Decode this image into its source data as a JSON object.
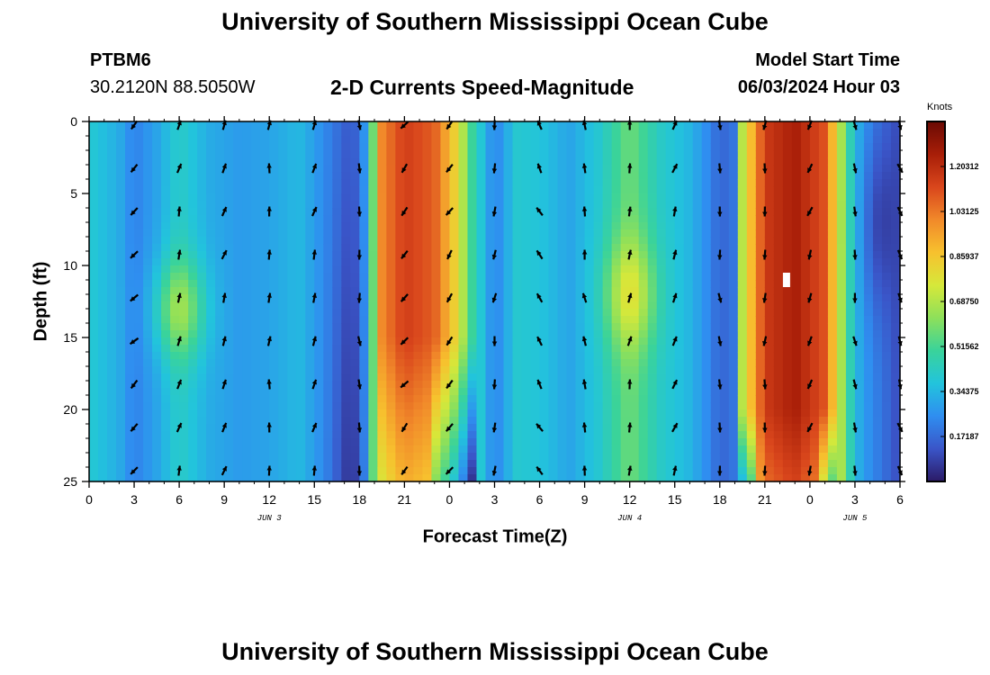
{
  "header": {
    "title": "University of Southern Mississippi Ocean Cube",
    "station": "PTBM6",
    "coords": "30.2120N  88.5050W",
    "subtitle": "2-D Currents Speed-Magnitude",
    "model_start_label": "Model Start Time",
    "model_start_value": "06/03/2024 Hour 03"
  },
  "footer": {
    "title": "University of Southern Mississippi Ocean Cube"
  },
  "colorbar": {
    "units": "Knots",
    "tick_values": [
      1.20312,
      1.03125,
      0.85937,
      0.6875,
      0.51562,
      0.34375,
      0.17187
    ],
    "tick_labels": [
      "1.20312",
      "1.03125",
      "0.85937",
      "0.68750",
      "0.51562",
      "0.34375",
      "0.17187"
    ],
    "range": [
      0,
      1.375
    ],
    "palette": [
      "#2b1a66",
      "#3a55c8",
      "#2f8ef0",
      "#22c4dc",
      "#3ad39a",
      "#8ee05a",
      "#d6e83a",
      "#f7c12e",
      "#f1892a",
      "#d9461c",
      "#a81e08",
      "#6a0a04"
    ]
  },
  "chart_data": {
    "type": "heatmap",
    "title": "2-D Currents Speed-Magnitude",
    "xlabel": "Forecast Time(Z)",
    "ylabel": "Depth (ft)",
    "x_unit": "hours since 06/03/2024 00Z",
    "xlim": [
      0,
      54
    ],
    "ylim": [
      25,
      0
    ],
    "x_ticks": [
      0,
      3,
      6,
      9,
      12,
      15,
      18,
      21,
      24,
      27,
      30,
      33,
      36,
      39,
      42,
      45,
      48,
      51,
      54
    ],
    "x_tick_labels": [
      "0",
      "3",
      "6",
      "9",
      "12",
      "15",
      "18",
      "21",
      "0",
      "3",
      "6",
      "9",
      "12",
      "15",
      "18",
      "21",
      "0",
      "3",
      "6"
    ],
    "y_ticks": [
      0,
      5,
      10,
      15,
      20,
      25
    ],
    "y_tick_labels": [
      "0",
      "5",
      "10",
      "15",
      "20",
      "25"
    ],
    "date_labels": [
      {
        "x": 12,
        "text": "JUN 3"
      },
      {
        "x": 36,
        "text": "JUN 4"
      },
      {
        "x": 51,
        "text": "JUN 5"
      }
    ],
    "speed_units": "knots",
    "speed_profile_by_hour": [
      {
        "hour": 0,
        "knots": 0.4
      },
      {
        "hour": 2,
        "knots": 0.32
      },
      {
        "hour": 3,
        "knots": 0.22
      },
      {
        "hour": 4.5,
        "knots": 0.3
      },
      {
        "hour": 6,
        "knots": 0.42
      },
      {
        "hour": 8,
        "knots": 0.32
      },
      {
        "hour": 10,
        "knots": 0.28
      },
      {
        "hour": 12,
        "knots": 0.3
      },
      {
        "hour": 14,
        "knots": 0.35
      },
      {
        "hour": 16,
        "knots": 0.22
      },
      {
        "hour": 17.5,
        "knots": 0.12
      },
      {
        "hour": 18.5,
        "knots": 0.3
      },
      {
        "hour": 19.5,
        "knots": 1.0
      },
      {
        "hour": 21,
        "knots": 1.15
      },
      {
        "hour": 23,
        "knots": 1.08
      },
      {
        "hour": 24.5,
        "knots": 0.8
      },
      {
        "hour": 25.5,
        "knots": 0.5
      },
      {
        "hour": 27,
        "knots": 0.22
      },
      {
        "hour": 28.5,
        "knots": 0.4
      },
      {
        "hour": 30,
        "knots": 0.38
      },
      {
        "hour": 32,
        "knots": 0.3
      },
      {
        "hour": 34,
        "knots": 0.4
      },
      {
        "hour": 36,
        "knots": 0.58
      },
      {
        "hour": 38,
        "knots": 0.42
      },
      {
        "hour": 40,
        "knots": 0.34
      },
      {
        "hour": 41,
        "knots": 0.26
      },
      {
        "hour": 42,
        "knots": 0.16
      },
      {
        "hour": 43,
        "knots": 0.2
      },
      {
        "hour": 43.5,
        "knots": 0.7
      },
      {
        "hour": 45,
        "knots": 1.16
      },
      {
        "hour": 47,
        "knots": 1.25
      },
      {
        "hour": 49,
        "knots": 1.1
      },
      {
        "hour": 50,
        "knots": 0.7
      },
      {
        "hour": 51,
        "knots": 0.35
      },
      {
        "hour": 52,
        "knots": 0.25
      },
      {
        "hour": 53,
        "knots": 0.18
      },
      {
        "hour": 54,
        "knots": 0.1
      }
    ],
    "vectors": {
      "times": [
        3,
        6,
        9,
        12,
        15,
        18,
        21,
        24,
        27,
        30,
        33,
        36,
        39,
        42,
        45,
        48,
        51,
        54
      ],
      "depths": [
        0,
        3,
        6,
        9,
        12,
        15,
        18,
        21,
        24
      ],
      "directions_deg_by_time": [
        225,
        15,
        20,
        5,
        15,
        175,
        220,
        215,
        190,
        330,
        350,
        10,
        20,
        175,
        185,
        200,
        170,
        160
      ]
    },
    "annotations": [
      {
        "text": "Knots",
        "role": "colorbar units"
      }
    ]
  }
}
